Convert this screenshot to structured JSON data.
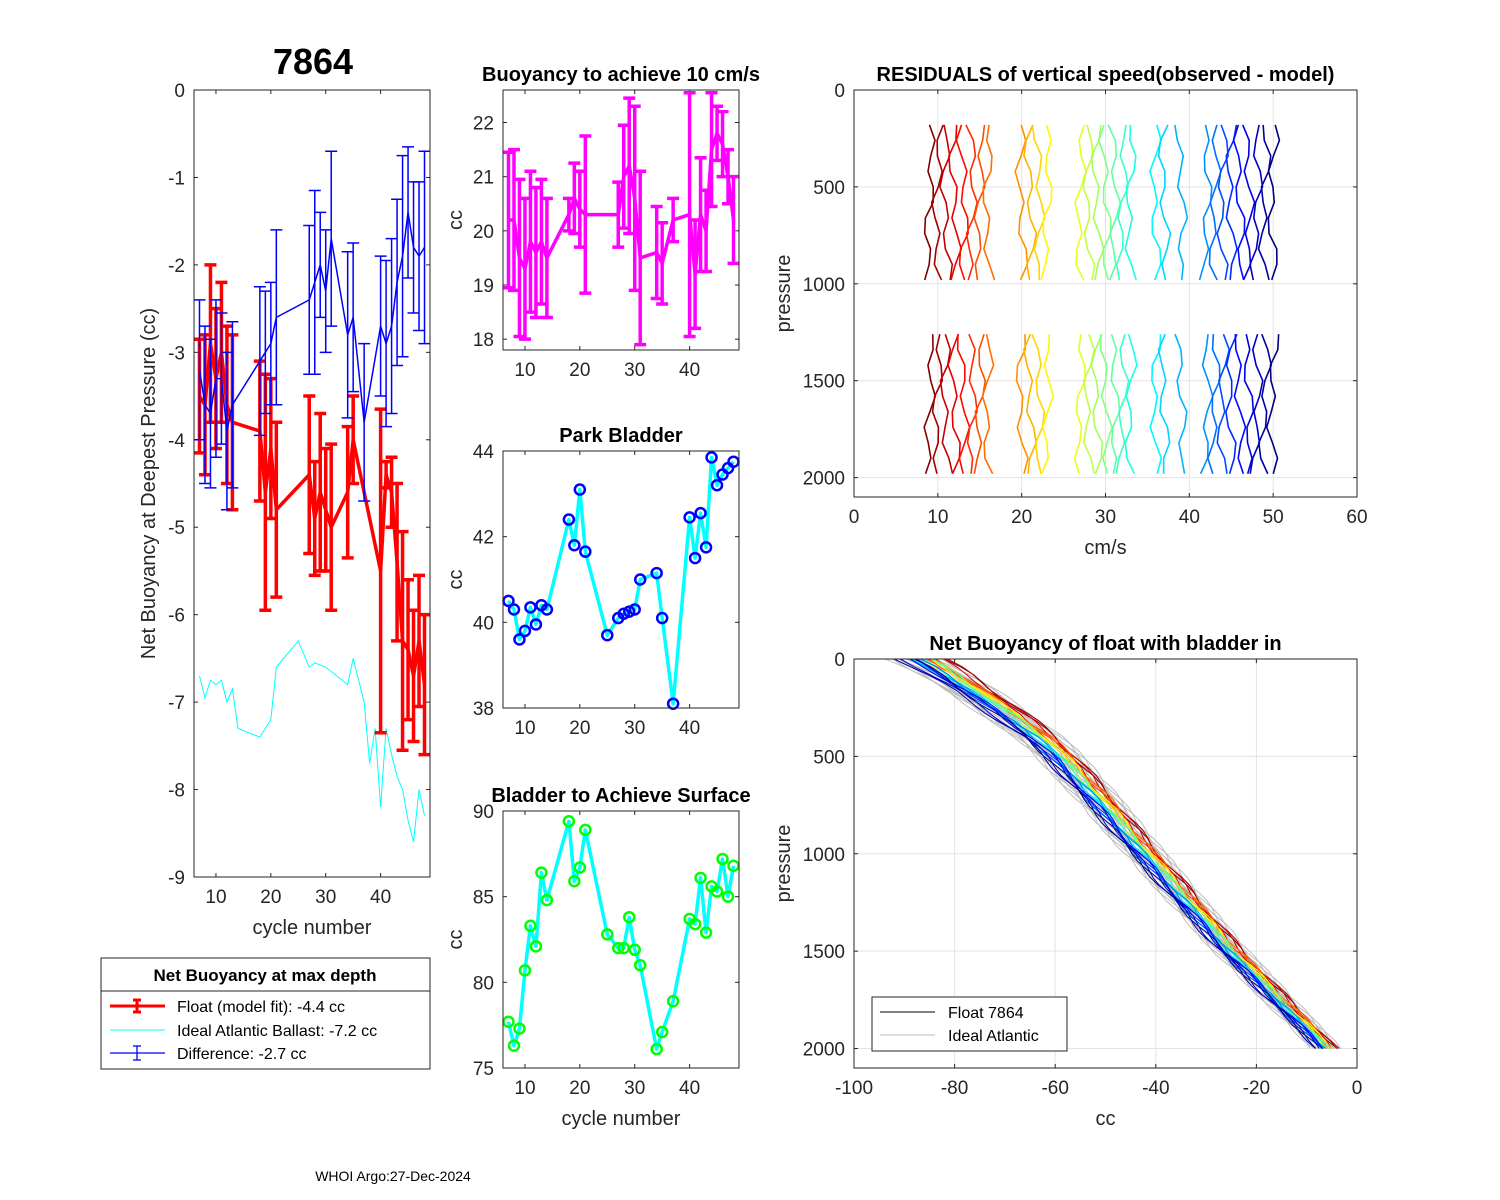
{
  "figure": {
    "main_title": "7864",
    "footer": "WHOI Argo:27-Dec-2024"
  },
  "chart_data": [
    {
      "id": "net-buoyancy",
      "type": "line",
      "title": "",
      "xlabel": "cycle number",
      "ylabel": "Net Buoyancy at Deepest Pressure (cc)",
      "xlim": [
        6,
        49
      ],
      "ylim": [
        -9,
        0
      ],
      "xticks": [
        10,
        20,
        30,
        40
      ],
      "yticks": [
        0,
        -1,
        -2,
        -3,
        -4,
        -5,
        -6,
        -7,
        -8,
        -9
      ],
      "legend": {
        "title": "Net Buoyancy at max depth",
        "entries": [
          "Float (model fit):  -4.4 cc",
          "Ideal Atlantic Ballast:  -7.2 cc",
          "Difference:  -2.7 cc"
        ]
      },
      "series": [
        {
          "name": "Float (model fit)",
          "color": "#ff0000",
          "x": [
            7,
            8,
            9,
            10,
            11,
            12,
            13,
            18,
            19,
            20,
            21,
            27,
            28,
            29,
            30,
            31,
            34,
            35,
            40,
            41,
            42,
            43,
            44,
            45,
            46,
            47,
            48
          ],
          "y": [
            -3.5,
            -3.6,
            -2.9,
            -3.3,
            -3.0,
            -3.6,
            -3.8,
            -3.9,
            -4.6,
            -4.1,
            -4.8,
            -4.4,
            -4.9,
            -4.6,
            -4.8,
            -5.0,
            -4.6,
            -4.0,
            -5.5,
            -4.4,
            -4.6,
            -5.4,
            -6.3,
            -6.4,
            -6.7,
            -6.3,
            -6.8
          ],
          "err": [
            0.65,
            0.8,
            0.9,
            0.8,
            0.8,
            0.9,
            1.0,
            0.8,
            1.35,
            0.8,
            1.0,
            0.9,
            0.65,
            0.9,
            0.7,
            0.95,
            0.75,
            0.5,
            1.85,
            0.15,
            0.4,
            0.9,
            1.25,
            0.8,
            0.75,
            0.75,
            0.8
          ]
        },
        {
          "name": "Ideal Atlantic Ballast",
          "color": "#00ffff",
          "x": [
            7,
            8,
            9,
            10,
            11,
            12,
            13,
            14,
            18,
            19,
            20,
            21,
            25,
            27,
            28,
            30,
            34,
            35,
            37,
            38,
            39,
            40,
            41,
            42,
            43,
            44,
            45,
            46,
            47,
            48
          ],
          "y": [
            -6.7,
            -6.95,
            -6.75,
            -6.8,
            -6.75,
            -7.0,
            -6.85,
            -7.3,
            -7.4,
            -7.3,
            -7.2,
            -6.6,
            -6.3,
            -6.6,
            -6.55,
            -6.6,
            -6.8,
            -6.5,
            -7.0,
            -7.7,
            -7.3,
            -8.2,
            -7.3,
            -7.6,
            -7.85,
            -8.0,
            -8.35,
            -8.6,
            -8.0,
            -8.3
          ]
        },
        {
          "name": "Difference",
          "color": "#0000ff",
          "x": [
            7,
            8,
            9,
            10,
            11,
            12,
            13,
            18,
            19,
            20,
            21,
            27,
            28,
            29,
            30,
            31,
            34,
            35,
            37,
            40,
            41,
            42,
            43,
            44,
            45,
            46,
            47,
            48
          ],
          "y": [
            -3.2,
            -3.6,
            -3.7,
            -3.3,
            -3.3,
            -3.9,
            -3.6,
            -3.1,
            -3.0,
            -2.9,
            -2.6,
            -2.4,
            -2.2,
            -2.0,
            -2.3,
            -1.7,
            -2.8,
            -2.6,
            -3.8,
            -2.7,
            -2.9,
            -2.7,
            -2.2,
            -1.9,
            -1.4,
            -1.8,
            -1.9,
            -1.8
          ],
          "err": [
            0.8,
            0.9,
            0.85,
            0.9,
            0.75,
            0.9,
            0.95,
            0.85,
            0.7,
            0.7,
            1.0,
            0.85,
            1.05,
            0.6,
            0.7,
            1.0,
            0.95,
            0.85,
            0.9,
            0.8,
            0.95,
            1.0,
            0.95,
            1.15,
            0.75,
            0.75,
            0.85,
            1.1
          ]
        }
      ]
    },
    {
      "id": "buoyancy-10cms",
      "type": "line",
      "title": "Buoyancy to achieve 10 cm/s",
      "xlabel": "",
      "ylabel": "cc",
      "xlim": [
        6,
        49
      ],
      "ylim": [
        17.8,
        22.6
      ],
      "xticks": [
        10,
        20,
        30,
        40
      ],
      "yticks": [
        18,
        19,
        20,
        21,
        22
      ],
      "series": [
        {
          "name": "Buoyancy",
          "color": "#ff00ff",
          "x": [
            7,
            8,
            9,
            10,
            11,
            12,
            13,
            14,
            18,
            19,
            20,
            21,
            27,
            28,
            29,
            30,
            31,
            34,
            35,
            37,
            40,
            41,
            42,
            43,
            44,
            45,
            46,
            47,
            48
          ],
          "y": [
            20.2,
            20.2,
            19.5,
            19.3,
            19.8,
            19.6,
            19.8,
            19.5,
            20.3,
            20.6,
            20.4,
            20.3,
            20.3,
            21.0,
            21.2,
            20.6,
            19.5,
            19.6,
            19.4,
            20.2,
            20.3,
            19.2,
            20.3,
            20.0,
            21.5,
            21.8,
            21.6,
            21.0,
            20.2
          ],
          "err": [
            1.25,
            1.3,
            1.45,
            1.3,
            1.3,
            1.2,
            1.15,
            1.1,
            0.3,
            0.65,
            0.7,
            1.45,
            0.6,
            0.95,
            1.25,
            1.7,
            1.6,
            0.85,
            0.75,
            0.4,
            2.25,
            1.0,
            1.05,
            0.75,
            1.05,
            0.5,
            0.6,
            0.5,
            0.8
          ]
        }
      ]
    },
    {
      "id": "park-bladder",
      "type": "line",
      "title": "Park Bladder",
      "xlabel": "",
      "ylabel": "cc",
      "xlim": [
        6,
        49
      ],
      "ylim": [
        38,
        44
      ],
      "xticks": [
        10,
        20,
        30,
        40
      ],
      "yticks": [
        38,
        40,
        42,
        44
      ],
      "series": [
        {
          "name": "Park Bladder",
          "color": "#00ffff",
          "marker_color": "#0000ff",
          "x": [
            7,
            8,
            9,
            10,
            11,
            12,
            13,
            14,
            18,
            19,
            20,
            21,
            25,
            27,
            28,
            29,
            30,
            31,
            34,
            35,
            37,
            40,
            41,
            42,
            43,
            44,
            45,
            46,
            47,
            48
          ],
          "y": [
            40.5,
            40.3,
            39.6,
            39.8,
            40.35,
            39.95,
            40.4,
            40.3,
            42.4,
            41.8,
            43.1,
            41.65,
            39.7,
            40.1,
            40.2,
            40.25,
            40.3,
            41.0,
            41.15,
            40.1,
            38.1,
            42.45,
            41.5,
            42.55,
            41.75,
            43.85,
            43.2,
            43.45,
            43.6,
            43.75
          ]
        }
      ]
    },
    {
      "id": "bladder-surface",
      "type": "line",
      "title": "Bladder to Achieve Surface",
      "xlabel": "cycle number",
      "ylabel": "cc",
      "xlim": [
        6,
        49
      ],
      "ylim": [
        75,
        90
      ],
      "xticks": [
        10,
        20,
        30,
        40
      ],
      "yticks": [
        75,
        80,
        85,
        90
      ],
      "series": [
        {
          "name": "Bladder to Achieve Surface",
          "color": "#00ffff",
          "marker_color": "#00ff00",
          "x": [
            7,
            8,
            9,
            10,
            11,
            12,
            13,
            14,
            18,
            19,
            20,
            21,
            25,
            27,
            28,
            29,
            30,
            31,
            34,
            35,
            37,
            40,
            41,
            42,
            43,
            44,
            45,
            46,
            47,
            48
          ],
          "y": [
            77.7,
            76.3,
            77.3,
            80.7,
            83.3,
            82.1,
            86.4,
            84.8,
            89.4,
            85.9,
            86.7,
            88.9,
            82.8,
            82.0,
            82.0,
            83.8,
            81.9,
            81.0,
            76.1,
            77.1,
            78.9,
            83.7,
            83.4,
            86.1,
            82.9,
            85.6,
            85.3,
            87.2,
            85.0,
            86.8
          ]
        }
      ]
    },
    {
      "id": "residuals",
      "type": "line",
      "title": "RESIDUALS of vertical speed(observed - model)",
      "xlabel": "cm/s",
      "ylabel": "pressure",
      "xlim": [
        0,
        60
      ],
      "ylim": [
        2100,
        0
      ],
      "xticks": [
        0,
        10,
        20,
        30,
        40,
        50,
        60
      ],
      "yticks": [
        0,
        500,
        1000,
        1500,
        2000
      ],
      "profile_offsets_cm_s": [
        9,
        10,
        11,
        12,
        13,
        14,
        15,
        16,
        20,
        21,
        22,
        23,
        27,
        28,
        29,
        30,
        31,
        32,
        33,
        36,
        37,
        39,
        42,
        43,
        44,
        45,
        46,
        47,
        48,
        49,
        50
      ],
      "residual_amplitude_cm_s": 0.5,
      "pressure_bands": [
        [
          180,
          1000
        ],
        [
          1260,
          2000
        ]
      ]
    },
    {
      "id": "net-buoyancy-bladder-in",
      "type": "line",
      "title": "Net Buoyancy of float with bladder in",
      "xlabel": "cc",
      "ylabel": "pressure",
      "xlim": [
        -100,
        0
      ],
      "ylim": [
        2100,
        0
      ],
      "xticks": [
        -100,
        -80,
        -60,
        -40,
        -20,
        0
      ],
      "yticks": [
        0,
        500,
        1000,
        1500,
        2000
      ],
      "legend": {
        "entries": [
          "Float 7864",
          "Ideal Atlantic"
        ]
      },
      "base_profile": {
        "pressure": [
          0,
          60,
          150,
          300,
          400,
          500,
          700,
          1000,
          1500,
          2000
        ],
        "cc": [
          -85,
          -81,
          -76,
          -68,
          -63,
          -59,
          -52,
          -42,
          -25,
          -6
        ]
      },
      "float_profile_count": 30,
      "ideal_profile_count": 24
    }
  ]
}
